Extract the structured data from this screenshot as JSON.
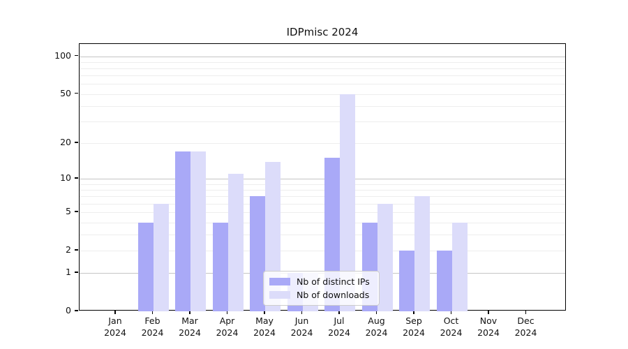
{
  "chart_data": {
    "type": "bar",
    "title": "IDPmisc 2024",
    "categories": [
      "Jan",
      "Feb",
      "Mar",
      "Apr",
      "May",
      "Jun",
      "Jul",
      "Aug",
      "Sep",
      "Oct",
      "Nov",
      "Dec"
    ],
    "year_label": "2024",
    "series": [
      {
        "name": "Nb of distinct IPs",
        "color": "#a9a9f7",
        "values": [
          0,
          4,
          17,
          4,
          7,
          1,
          15,
          4,
          2,
          2,
          0,
          0
        ]
      },
      {
        "name": "Nb of downloads",
        "color": "#dcdcfa",
        "values": [
          0,
          6,
          17,
          11,
          14,
          1,
          50,
          6,
          7,
          4,
          0,
          0
        ]
      }
    ],
    "yscale": "log1p",
    "ylim": [
      0,
      124
    ],
    "yticks": [
      0,
      1,
      2,
      5,
      10,
      20,
      50,
      100
    ],
    "grid": {
      "major": [
        1,
        10,
        100
      ],
      "minor": [
        2,
        3,
        4,
        5,
        6,
        7,
        8,
        9,
        20,
        30,
        40,
        50,
        60,
        70,
        80,
        90
      ],
      "major_color": "#c4c4c4",
      "minor_color": "#ededed"
    },
    "legend_position": "bottom-center",
    "xlabel": "",
    "ylabel": ""
  }
}
